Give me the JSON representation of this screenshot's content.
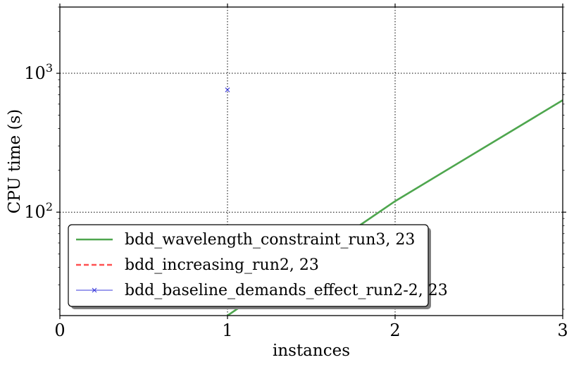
{
  "chart_data": {
    "type": "line",
    "title": "",
    "xlabel": "instances",
    "ylabel": "CPU time (s)",
    "x_scale": "linear",
    "y_scale": "log",
    "xlim": [
      0,
      3
    ],
    "ylim": [
      18,
      3000
    ],
    "grid": true,
    "legend_position": "lower-left",
    "x_ticks": [
      {
        "value": 0,
        "label": "0"
      },
      {
        "value": 1,
        "label": "1"
      },
      {
        "value": 2,
        "label": "2"
      },
      {
        "value": 3,
        "label": "3"
      }
    ],
    "y_ticks": [
      {
        "value": 100,
        "base": "10",
        "exp": "2"
      },
      {
        "value": 1000,
        "base": "10",
        "exp": "3"
      }
    ],
    "series": [
      {
        "name": "bdd_wavelength_constraint_run3, 23",
        "color": "#4ea64e",
        "style": "solid",
        "marker": "none",
        "points": [
          {
            "x": 1,
            "y": 18
          },
          {
            "x": 2,
            "y": 120
          },
          {
            "x": 3,
            "y": 640
          }
        ]
      },
      {
        "name": "bdd_increasing_run2, 23",
        "color": "#ff5050",
        "style": "dashed",
        "marker": "none",
        "points": []
      },
      {
        "name": "bdd_baseline_demands_effect_run2-2, 23",
        "color": "#3b3bdb",
        "style": "solid",
        "marker": "x",
        "points": [
          {
            "x": 1,
            "y": 760
          }
        ]
      }
    ]
  }
}
